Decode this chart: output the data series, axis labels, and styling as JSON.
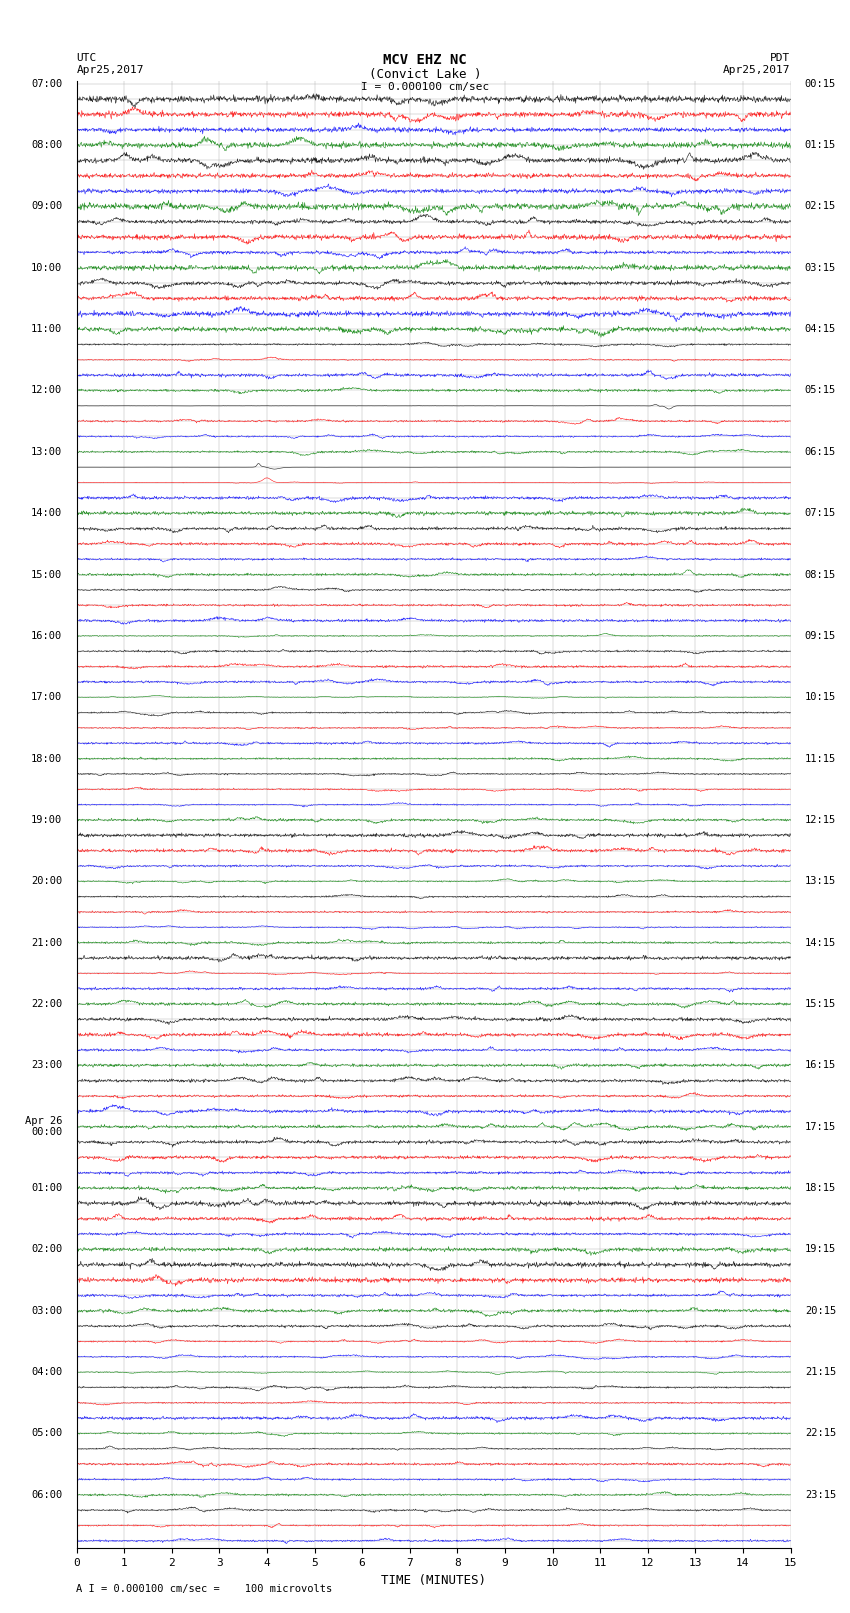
{
  "title_line1": "MCV EHZ NC",
  "title_line2": "(Convict Lake )",
  "scale_label": "I = 0.000100 cm/sec",
  "left_header": "UTC\nApr25,2017",
  "right_header": "PDT\nApr25,2017",
  "bottom_label": "A I = 0.000100 cm/sec =    100 microvolts",
  "xlabel": "TIME (MINUTES)",
  "xlim": [
    0,
    15
  ],
  "xticks": [
    0,
    1,
    2,
    3,
    4,
    5,
    6,
    7,
    8,
    9,
    10,
    11,
    12,
    13,
    14,
    15
  ],
  "left_times": [
    "07:00",
    "",
    "",
    "",
    "08:00",
    "",
    "",
    "",
    "09:00",
    "",
    "",
    "",
    "10:00",
    "",
    "",
    "",
    "11:00",
    "",
    "",
    "",
    "12:00",
    "",
    "",
    "",
    "13:00",
    "",
    "",
    "",
    "14:00",
    "",
    "",
    "",
    "15:00",
    "",
    "",
    "",
    "16:00",
    "",
    "",
    "",
    "17:00",
    "",
    "",
    "",
    "18:00",
    "",
    "",
    "",
    "19:00",
    "",
    "",
    "",
    "20:00",
    "",
    "",
    "",
    "21:00",
    "",
    "",
    "",
    "22:00",
    "",
    "",
    "",
    "23:00",
    "",
    "",
    "",
    "Apr 26\n00:00",
    "",
    "",
    "",
    "01:00",
    "",
    "",
    "",
    "02:00",
    "",
    "",
    "",
    "03:00",
    "",
    "",
    "",
    "04:00",
    "",
    "",
    "",
    "05:00",
    "",
    "",
    "",
    "06:00",
    "",
    ""
  ],
  "right_times": [
    "00:15",
    "",
    "",
    "",
    "01:15",
    "",
    "",
    "",
    "02:15",
    "",
    "",
    "",
    "03:15",
    "",
    "",
    "",
    "04:15",
    "",
    "",
    "",
    "05:15",
    "",
    "",
    "",
    "06:15",
    "",
    "",
    "",
    "07:15",
    "",
    "",
    "",
    "08:15",
    "",
    "",
    "",
    "09:15",
    "",
    "",
    "",
    "10:15",
    "",
    "",
    "",
    "11:15",
    "",
    "",
    "",
    "12:15",
    "",
    "",
    "",
    "13:15",
    "",
    "",
    "",
    "14:15",
    "",
    "",
    "",
    "15:15",
    "",
    "",
    "",
    "16:15",
    "",
    "",
    "",
    "17:15",
    "",
    "",
    "",
    "18:15",
    "",
    "",
    "",
    "19:15",
    "",
    "",
    "",
    "20:15",
    "",
    "",
    "",
    "21:15",
    "",
    "",
    "",
    "22:15",
    "",
    "",
    "",
    "23:15",
    "",
    ""
  ],
  "num_rows": 95,
  "colors_cycle": [
    "black",
    "red",
    "blue",
    "green"
  ],
  "background_color": "#ffffff",
  "grid_color": "#aaaaaa",
  "fig_width": 8.5,
  "fig_height": 16.13
}
